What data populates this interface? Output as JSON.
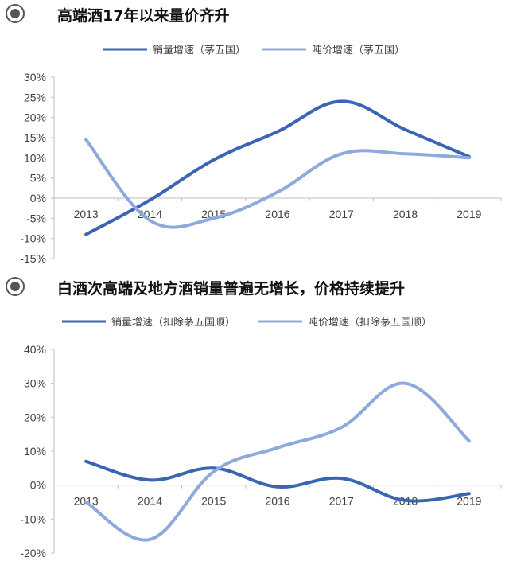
{
  "sections": [
    {
      "title": "高端酒17年以来量价齐升"
    },
    {
      "title": "白酒次高端及地方酒销量普遍无增长，价格持续提升"
    }
  ],
  "colors": {
    "series_dark": "#3A64B4",
    "series_light": "#8EA9DB",
    "axis": "#bfbfbf",
    "bullet": "#555555"
  },
  "chart_data": [
    {
      "type": "line",
      "x": [
        "2013",
        "2014",
        "2015",
        "2016",
        "2017",
        "2018",
        "2019"
      ],
      "series": [
        {
          "name": "销量增速（茅五国）",
          "values": [
            -9,
            -0.5,
            9.5,
            16.5,
            24,
            17,
            10.3
          ]
        },
        {
          "name": "吨价增速（茅五国）",
          "values": [
            14.5,
            -5.5,
            -5,
            1.5,
            11,
            11,
            10
          ]
        }
      ],
      "ylim": [
        -15,
        30
      ],
      "yticks": [
        "30%",
        "25%",
        "20%",
        "15%",
        "10%",
        "5%",
        "0%",
        "-5%",
        "-10%",
        "-15%"
      ],
      "legend": "top",
      "grid": false
    },
    {
      "type": "line",
      "x": [
        "2013",
        "2014",
        "2015",
        "2016",
        "2017",
        "2018",
        "2019"
      ],
      "series": [
        {
          "name": "销量增速（扣除茅五国顺）",
          "values": [
            7,
            1.5,
            5,
            -0.5,
            2,
            -4.5,
            -2.5
          ]
        },
        {
          "name": "吨价增速（扣除茅五国顺）",
          "values": [
            -5,
            -16,
            4,
            11,
            17,
            30,
            13
          ]
        }
      ],
      "ylim": [
        -20,
        40
      ],
      "yticks": [
        "40%",
        "30%",
        "20%",
        "10%",
        "0%",
        "-10%",
        "-20%"
      ],
      "legend": "top",
      "grid": false
    }
  ]
}
